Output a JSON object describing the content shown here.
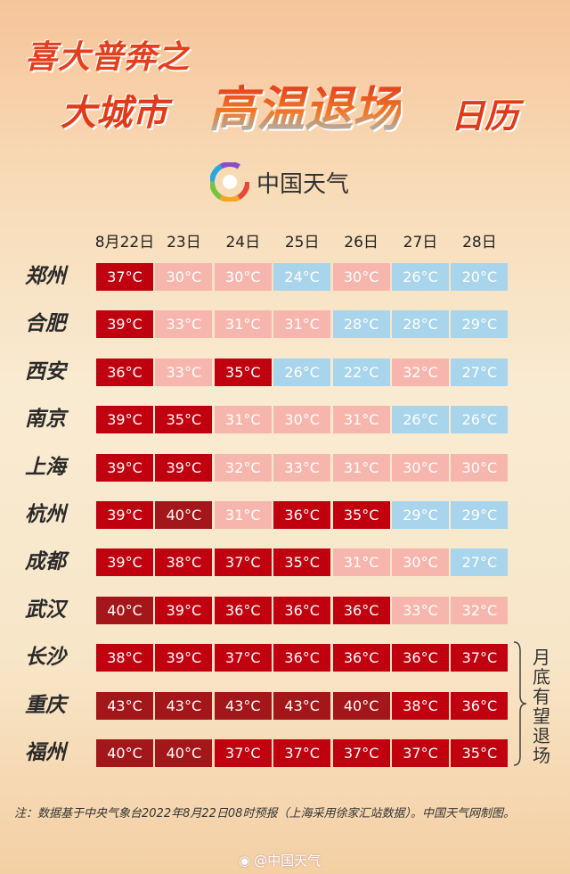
{
  "title": {
    "line1": "喜大普奔之",
    "prefix": "大城市",
    "highlight": "高温退场",
    "suffix": "日历"
  },
  "brand": {
    "name": "中国天气",
    "icon": "china-weather-swirl-logo"
  },
  "dates": [
    "8月22日",
    "23日",
    "24日",
    "25日",
    "26日",
    "27日",
    "28日"
  ],
  "unit": "°C",
  "color_scale": {
    "ge40": "#a3171a",
    "35_39": "#c0000f",
    "30_34": "#f7b6ad",
    "lt30": "#a8d4ec"
  },
  "rows": [
    {
      "city": "郑州",
      "temps": [
        37,
        30,
        30,
        24,
        30,
        26,
        20
      ]
    },
    {
      "city": "合肥",
      "temps": [
        39,
        33,
        31,
        31,
        28,
        28,
        29
      ]
    },
    {
      "city": "西安",
      "temps": [
        36,
        33,
        35,
        26,
        22,
        32,
        27
      ]
    },
    {
      "city": "南京",
      "temps": [
        39,
        35,
        31,
        30,
        31,
        26,
        26
      ]
    },
    {
      "city": "上海",
      "temps": [
        39,
        39,
        32,
        33,
        31,
        30,
        30
      ]
    },
    {
      "city": "杭州",
      "temps": [
        39,
        40,
        31,
        36,
        35,
        29,
        29
      ]
    },
    {
      "city": "成都",
      "temps": [
        39,
        38,
        37,
        35,
        31,
        30,
        27
      ]
    },
    {
      "city": "武汉",
      "temps": [
        40,
        39,
        36,
        36,
        36,
        33,
        32
      ]
    },
    {
      "city": "长沙",
      "temps": [
        38,
        39,
        37,
        36,
        36,
        36,
        37
      ]
    },
    {
      "city": "重庆",
      "temps": [
        43,
        43,
        43,
        43,
        40,
        38,
        36
      ]
    },
    {
      "city": "福州",
      "temps": [
        40,
        40,
        37,
        37,
        37,
        37,
        35
      ]
    }
  ],
  "side_note": "月底有望退场",
  "footer": "注：数据基于中央气象台2022年8月22日08时预报（上海采用徐家汇站数据）。中国天气网制图。",
  "weibo": {
    "icon": "weibo-icon",
    "handle": "@中国天气"
  }
}
